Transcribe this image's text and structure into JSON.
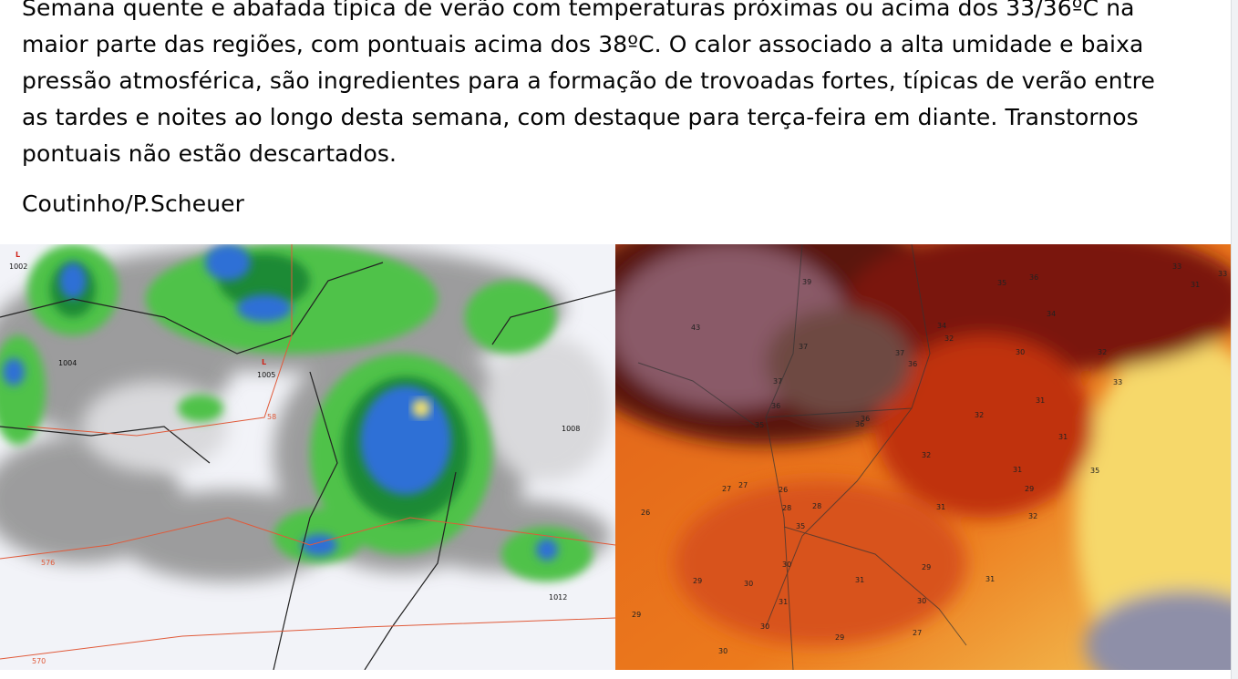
{
  "post": {
    "text_lines": [
      "Semana quente e abafada típica de verão com temperaturas próximas ou acima dos 33/36ºC na",
      "maior parte das regiões, com pontuais acima dos 38ºC. O calor associado a alta umidade e baixa",
      "pressão atmosférica, são ingredientes para a formação de trovoadas fortes, típicas de verão entre",
      "as tardes e noites ao longo desta semana, com destaque para terça-feira em diante. Transtornos",
      "pontuais não estão descartados."
    ],
    "signature": "Coutinho/P.Scheuer"
  },
  "left_map": {
    "labels": [
      "L",
      "1002",
      "1004",
      "L",
      "1005",
      "58",
      "1008",
      "576",
      "1012",
      "570"
    ]
  },
  "right_map": {
    "labels": [
      "39",
      "43",
      "37",
      "37",
      "36",
      "37",
      "36",
      "35",
      "36",
      "36",
      "35",
      "36",
      "33",
      "33",
      "31",
      "34",
      "34",
      "32",
      "30",
      "32",
      "33",
      "31",
      "32",
      "31",
      "32",
      "31",
      "35",
      "27",
      "27",
      "26",
      "29",
      "28",
      "28",
      "26",
      "31",
      "32",
      "35",
      "30",
      "29",
      "31",
      "29",
      "30",
      "31",
      "31",
      "30",
      "29",
      "30",
      "29",
      "27",
      "30"
    ]
  }
}
